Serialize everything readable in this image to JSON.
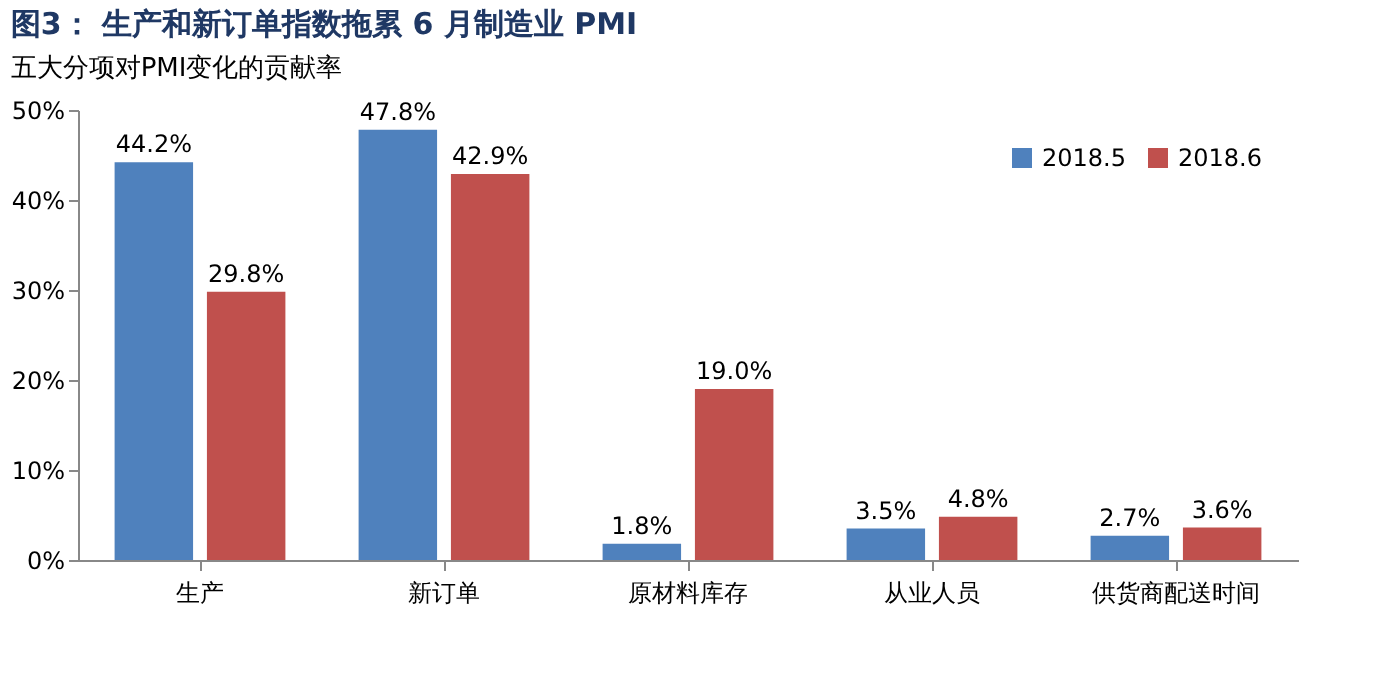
{
  "chart_data": {
    "type": "bar",
    "title": "图3： 生产和新订单指数拖累 6 月制造业 PMI",
    "subtitle": "五大分项对PMI变化的贡献率",
    "categories": [
      "生产",
      "新订单",
      "原材料库存",
      "从业人员",
      "供货商配送时间"
    ],
    "series": [
      {
        "name": "2018.5",
        "color": "#4f81bd",
        "values": [
          44.2,
          47.8,
          1.8,
          3.5,
          2.7
        ],
        "value_labels": [
          "44.2%",
          "47.8%",
          "1.8%",
          "3.5%",
          "2.7%"
        ]
      },
      {
        "name": "2018.6",
        "color": "#c0504d",
        "values": [
          29.8,
          42.9,
          19.0,
          4.8,
          3.6
        ],
        "value_labels": [
          "29.8%",
          "42.9%",
          "19.0%",
          "4.8%",
          "3.6%"
        ]
      }
    ],
    "ylim": [
      0,
      50
    ],
    "yticks": [
      {
        "value": 0,
        "label": "0%"
      },
      {
        "value": 10,
        "label": "10%"
      },
      {
        "value": 20,
        "label": "20%"
      },
      {
        "value": 30,
        "label": "30%"
      },
      {
        "value": 40,
        "label": "40%"
      },
      {
        "value": 50,
        "label": "50%"
      }
    ],
    "grid": false,
    "legend": "top right"
  }
}
